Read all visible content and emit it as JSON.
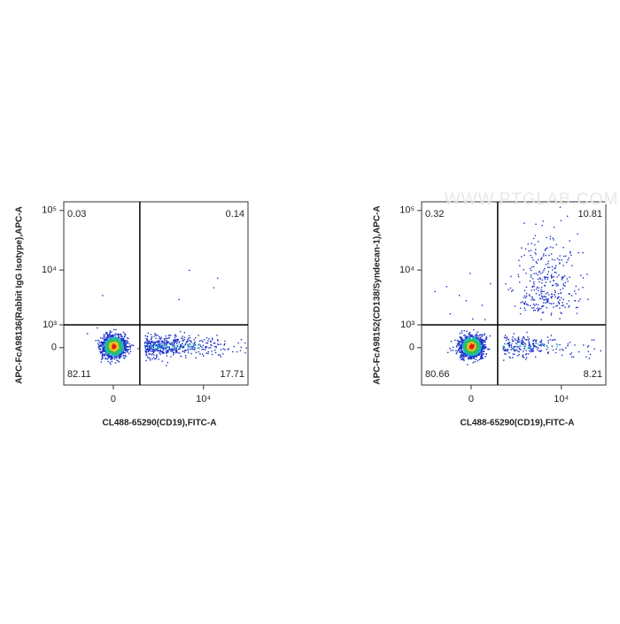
{
  "chart_data": [
    {
      "type": "quadrant",
      "scale": "biexponential",
      "x_label": "CL488-65290(CD19),FITC-A",
      "y_label": "APC-FcA98136(Rabbit IgG Isotype),APC-A",
      "xlim": [
        -2500,
        44000
      ],
      "ylim": [
        -2000,
        140000
      ],
      "xticks": [
        0,
        {
          "value": 10000,
          "label": "10⁴"
        }
      ],
      "yticks": [
        0,
        {
          "value": 1000,
          "label": "10³"
        },
        {
          "value": 10000,
          "label": "10⁴"
        },
        {
          "value": 100000,
          "label": "10⁵"
        }
      ],
      "gates": {
        "x": 1000,
        "y": 1000
      },
      "quadrant_values": [
        0.03,
        0.14,
        82.11,
        17.71
      ]
    },
    {
      "type": "quadrant",
      "scale": "biexponential",
      "x_label": "CL488-65290(CD19),FITC-A",
      "y_label": "APC-FcA98152(CD138/Syndecan-1),APC-A",
      "xlim": [
        -2500,
        44000
      ],
      "ylim": [
        -2000,
        140000
      ],
      "xticks": [
        0,
        {
          "value": 10000,
          "label": "10⁴"
        }
      ],
      "yticks": [
        0,
        {
          "value": 1000,
          "label": "10³"
        },
        {
          "value": 10000,
          "label": "10⁴"
        },
        {
          "value": 100000,
          "label": "10⁵"
        }
      ],
      "gates": {
        "x": 1000,
        "y": 1000
      },
      "quadrant_values": [
        0.32,
        10.81,
        80.66,
        8.21
      ],
      "watermark": "WWW.PTGLAB.COM"
    }
  ]
}
